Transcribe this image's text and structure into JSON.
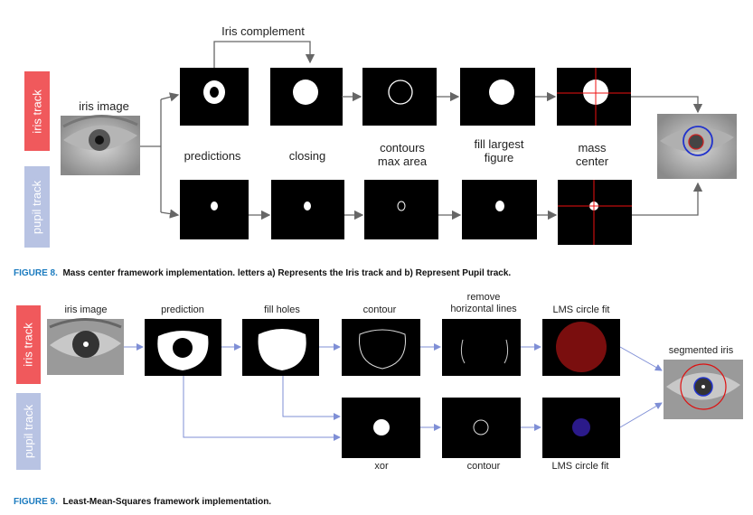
{
  "figure8": {
    "iris_complement": "Iris complement",
    "iris_track": "iris track",
    "pupil_track": "pupil track",
    "iris_image": "iris image",
    "steps": [
      "predictions",
      "closing",
      "contours\nmax area",
      "fill largest\nfigure",
      "mass\ncenter"
    ],
    "caption_num": "FIGURE 8.",
    "caption_text": "Mass center framework implementation. letters a) Represents the Iris track and b) Represent Pupil track."
  },
  "figure9": {
    "iris_track": "iris track",
    "pupil_track": "pupil track",
    "iris_image": "iris image",
    "top_steps": [
      "prediction",
      "fill holes",
      "contour",
      "remove\nhorizontal lines",
      "LMS circle fit"
    ],
    "bottom_steps": [
      "xor",
      "contour",
      "LMS circle fit"
    ],
    "segmented_iris": "segmented iris",
    "caption_num": "FIGURE 9.",
    "caption_text": "Least-Mean-Squares framework implementation."
  },
  "colors": {
    "iris_track_bg": "#f0595c",
    "pupil_track_bg": "#b8c3e3",
    "caption_blue": "#1b7bbf",
    "arrow_gray": "#666666",
    "arrow_blue": "#7f8fd6"
  }
}
